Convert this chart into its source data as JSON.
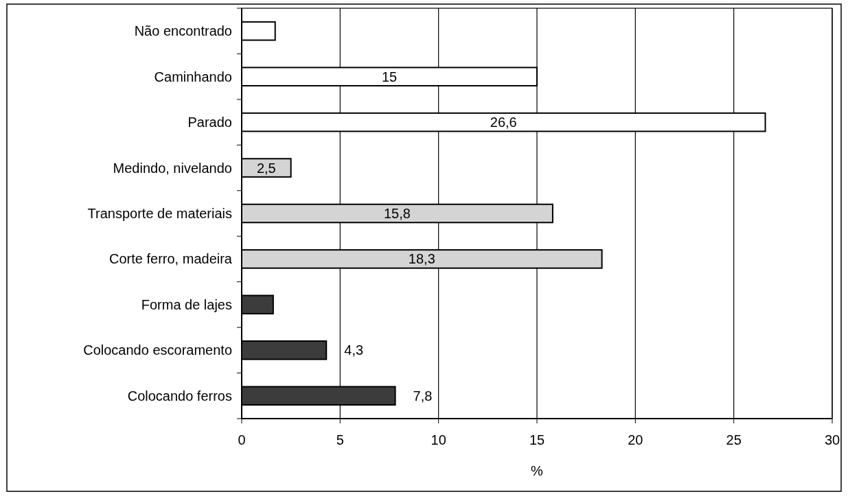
{
  "chart_data": {
    "type": "bar",
    "orientation": "horizontal",
    "xlabel": "%",
    "categories": [
      "Não encontrado",
      "Caminhando",
      "Parado",
      "Medindo, nivelando",
      "Transporte de materiais",
      "Corte ferro, madeira",
      "Forma de lajes",
      "Colocando escoramento",
      "Colocando ferros"
    ],
    "values": [
      1.7,
      15,
      26.6,
      2.5,
      15.8,
      18.3,
      1.6,
      4.3,
      7.8
    ],
    "value_labels": [
      null,
      "15",
      "26,6",
      "2,5",
      "15,8",
      "18,3",
      null,
      "4,3",
      "7,8"
    ],
    "colors": [
      "#ffffff",
      "#ffffff",
      "#ffffff",
      "#d4d4d4",
      "#d4d4d4",
      "#d4d4d4",
      "#3c3c3c",
      "#3c3c3c",
      "#3c3c3c"
    ],
    "xlim": [
      0,
      30
    ],
    "xticks": [
      0,
      5,
      10,
      15,
      20,
      25,
      30
    ],
    "grid": "x"
  }
}
